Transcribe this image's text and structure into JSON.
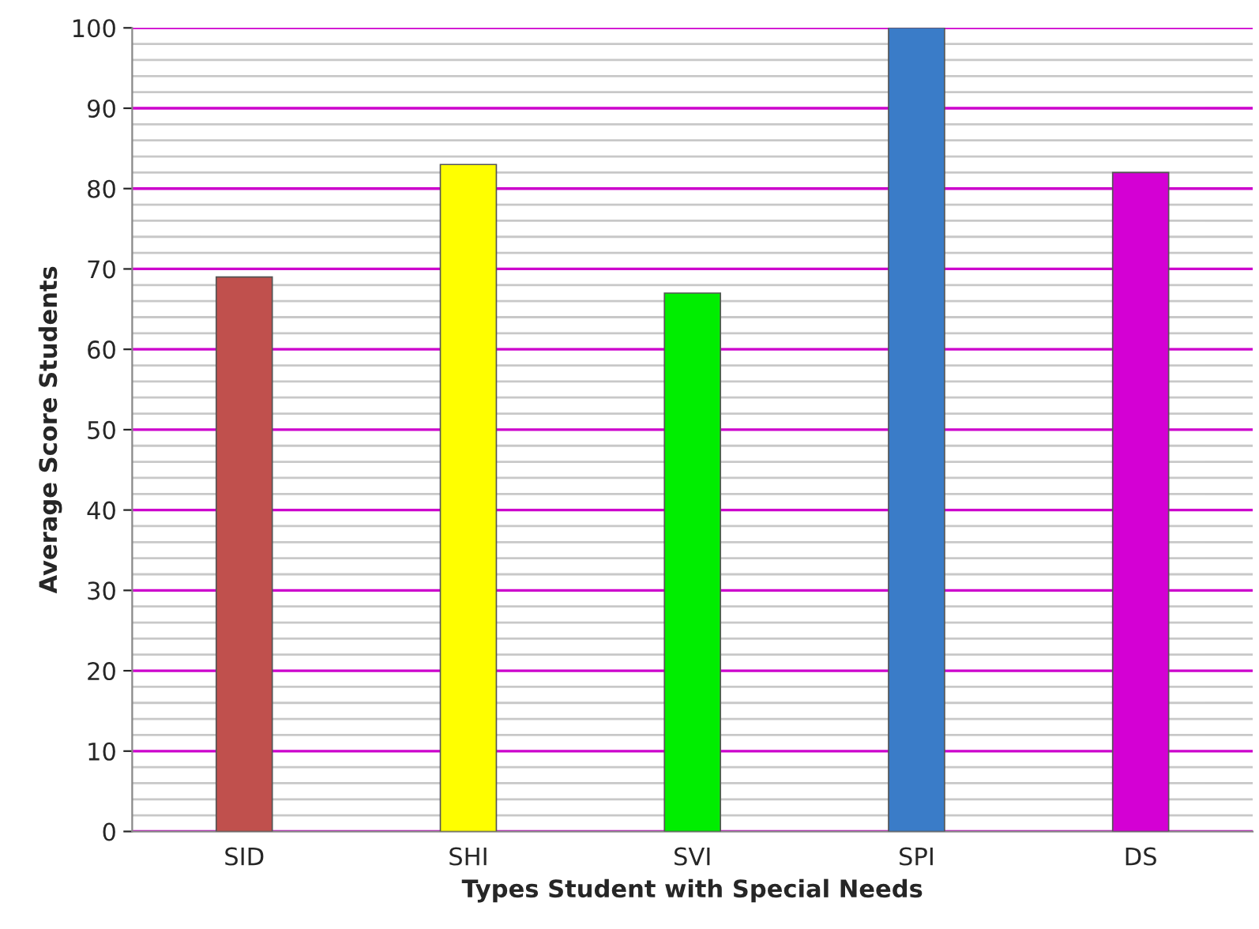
{
  "chart_data": {
    "type": "bar",
    "xlabel": "Types Student with Special Needs",
    "ylabel": "Average Score Students",
    "categories": [
      "SID",
      "SHI",
      "SVI",
      "SPI",
      "DS"
    ],
    "values": [
      69,
      83,
      67,
      100,
      82
    ],
    "colors": [
      "#c0504d",
      "#ffff00",
      "#00ee00",
      "#3a7cc8",
      "#d400d4"
    ],
    "ylim": [
      0,
      100
    ],
    "yticks": [
      0,
      {
        "value": 2,
        "label": null
      },
      {
        "value": 4,
        "label": null
      },
      {
        "value": 6,
        "label": null
      },
      {
        "value": 8,
        "label": null
      },
      10,
      {
        "value": 12,
        "label": null
      },
      {
        "value": 14,
        "label": null
      },
      {
        "value": 16,
        "label": null
      },
      {
        "value": 18,
        "label": null
      },
      20,
      {
        "value": 22,
        "label": null
      },
      {
        "value": 24,
        "label": null
      },
      {
        "value": 26,
        "label": null
      },
      {
        "value": 28,
        "label": null
      },
      30,
      {
        "value": 32,
        "label": null
      },
      {
        "value": 34,
        "label": null
      },
      {
        "value": 36,
        "label": null
      },
      {
        "value": 38,
        "label": null
      },
      40,
      {
        "value": 42,
        "label": null
      },
      {
        "value": 44,
        "label": null
      },
      {
        "value": 46,
        "label": null
      },
      {
        "value": 48,
        "label": null
      },
      50,
      {
        "value": 52,
        "label": null
      },
      {
        "value": 54,
        "label": null
      },
      {
        "value": 56,
        "label": null
      },
      {
        "value": 58,
        "label": null
      },
      60,
      {
        "value": 62,
        "label": null
      },
      {
        "value": 64,
        "label": null
      },
      {
        "value": 66,
        "label": null
      },
      {
        "value": 68,
        "label": null
      },
      70,
      {
        "value": 72,
        "label": null
      },
      {
        "value": 74,
        "label": null
      },
      {
        "value": 76,
        "label": null
      },
      {
        "value": 78,
        "label": null
      },
      80,
      {
        "value": 82,
        "label": null
      },
      {
        "value": 84,
        "label": null
      },
      {
        "value": 86,
        "label": null
      },
      {
        "value": 88,
        "label": null
      },
      90,
      {
        "value": 92,
        "label": null
      },
      {
        "value": 94,
        "label": null
      },
      {
        "value": 96,
        "label": null
      },
      {
        "value": 98,
        "label": null
      },
      100
    ],
    "grid": "y",
    "legend": false
  }
}
